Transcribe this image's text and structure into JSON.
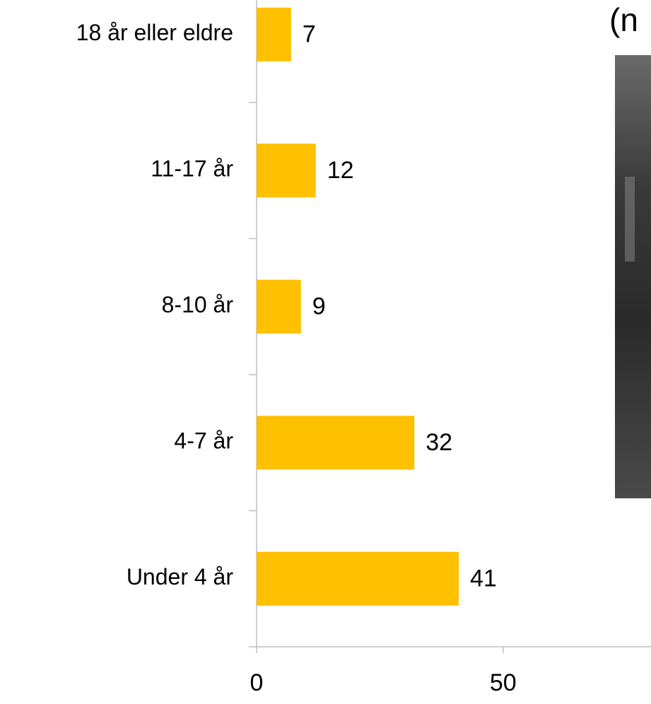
{
  "chart_data": {
    "type": "bar",
    "orientation": "horizontal",
    "title": "(n",
    "categories": [
      "18 år eller eldre",
      "11-17 år",
      "8-10 år",
      "4-7 år",
      "Under 4 år"
    ],
    "values": [
      7,
      12,
      9,
      32,
      41
    ],
    "color": "#ffc000",
    "xlim": [
      0,
      80
    ],
    "xticks": [
      0,
      50
    ],
    "grid": false
  }
}
